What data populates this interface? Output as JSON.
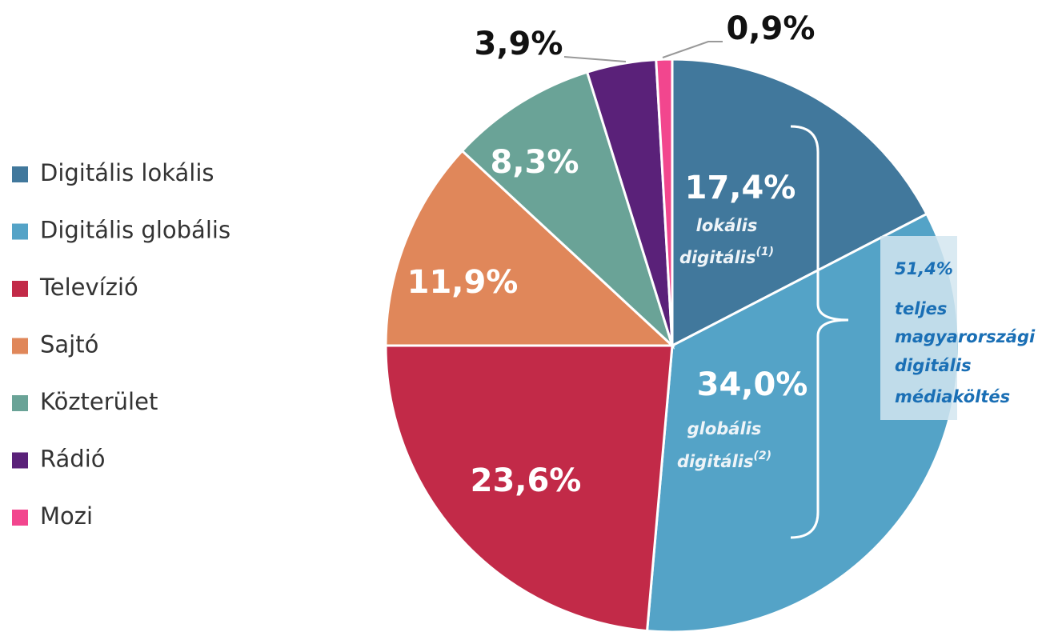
{
  "chart_data": {
    "type": "pie",
    "categories": [
      "Digitális lokális",
      "Digitális globális",
      "Televízió",
      "Sajtó",
      "Közterület",
      "Rádió",
      "Mozi"
    ],
    "values": [
      17.4,
      34.0,
      23.6,
      11.9,
      8.3,
      3.9,
      0.9
    ],
    "value_labels": [
      "17,4%",
      "34,0%",
      "23,6%",
      "11,9%",
      "8,3%",
      "3,9%",
      "0,9%"
    ],
    "colors": [
      "#41789c",
      "#54a3c7",
      "#c22a48",
      "#e0875a",
      "#6aa397",
      "#5a2179",
      "#f2468e"
    ],
    "legend": "left",
    "annotations": [
      {
        "lines": [
          "lokális",
          "digitális"
        ],
        "sup": "(1)"
      },
      {
        "lines": [
          "globális",
          "digitális"
        ],
        "sup": "(2)"
      }
    ],
    "bracket": {
      "title": "51,4%",
      "lines": [
        "teljes",
        "magyarországi",
        "digitális",
        "médiaköltés"
      ]
    }
  }
}
